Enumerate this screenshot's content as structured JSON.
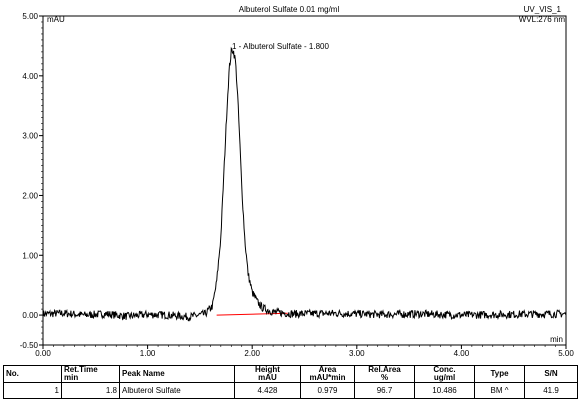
{
  "chart_data": {
    "type": "line",
    "title": "Albuterol Sulfate 0.01 mg/ml",
    "channel": "UV_VIS_1",
    "wavelength": "WVL:276 nm",
    "ylabel": "mAU",
    "xlabel": "min",
    "xlim": [
      0,
      5
    ],
    "ylim": [
      -0.5,
      5
    ],
    "x_ticks": [
      0,
      1,
      2,
      3,
      4,
      5
    ],
    "x_tick_labels": [
      "0.00",
      "1.00",
      "2.00",
      "3.00",
      "4.00",
      "5.00"
    ],
    "y_ticks": [
      -0.5,
      0,
      1,
      2,
      3,
      4,
      5
    ],
    "y_tick_labels": [
      "-0.50",
      "0.00",
      "1.00",
      "2.00",
      "3.00",
      "4.00",
      "5.00"
    ],
    "series": [
      {
        "x": [
          0.0,
          0.2,
          0.4,
          0.6,
          0.8,
          1.0,
          1.2,
          1.4,
          1.55,
          1.62,
          1.66,
          1.7,
          1.73,
          1.76,
          1.78,
          1.8,
          1.81,
          1.82,
          1.84,
          1.86,
          1.88,
          1.9,
          1.93,
          1.96,
          2.0,
          2.05,
          2.1,
          2.2,
          2.4,
          2.8,
          3.2,
          3.6,
          4.0,
          4.4,
          4.8,
          5.0
        ],
        "y": [
          0.02,
          0.03,
          0.0,
          0.02,
          -0.02,
          0.01,
          0.0,
          -0.03,
          0.02,
          0.15,
          0.55,
          1.3,
          2.4,
          3.5,
          4.1,
          4.4,
          4.43,
          4.42,
          4.25,
          3.7,
          2.95,
          2.15,
          1.25,
          0.7,
          0.38,
          0.22,
          0.12,
          0.05,
          0.02,
          0.03,
          0.01,
          0.02,
          0.0,
          0.01,
          0.02,
          0.02
        ]
      }
    ],
    "peak_label": "1 - Albuterol Sulfate - 1.800",
    "baseline": {
      "x": [
        1.66,
        2.34
      ],
      "y": [
        0.0,
        0.03
      ],
      "color": "#ff0000"
    }
  },
  "table": {
    "headers": [
      {
        "l1": "No.",
        "l2": ""
      },
      {
        "l1": "Ret.Time",
        "l2": "min"
      },
      {
        "l1": "Peak Name",
        "l2": ""
      },
      {
        "l1": "Height",
        "l2": "mAU"
      },
      {
        "l1": "Area",
        "l2": "mAU*min"
      },
      {
        "l1": "Rel.Area",
        "l2": "%"
      },
      {
        "l1": "Conc.",
        "l2": "ug/ml"
      },
      {
        "l1": "Type",
        "l2": ""
      },
      {
        "l1": "S/N",
        "l2": ""
      }
    ],
    "row": {
      "no": "1",
      "ret_time": "1.8",
      "peak_name": "Albuterol Sulfate",
      "height": "4.428",
      "area": "0.979",
      "rel_area": "96.7",
      "conc": "10.486",
      "type": "BM ^",
      "sn": "41.9"
    }
  }
}
